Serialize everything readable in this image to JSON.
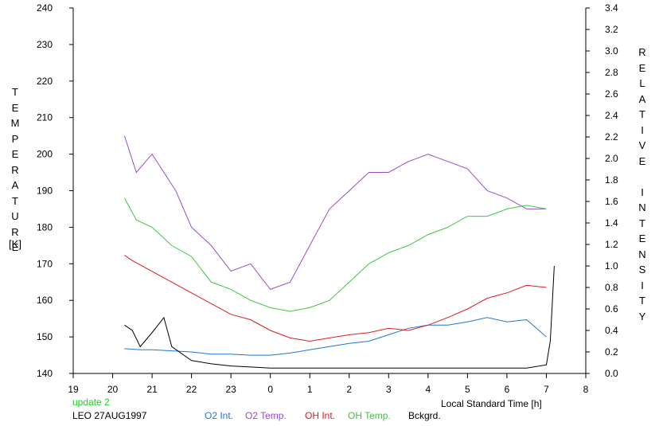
{
  "chart_data": {
    "type": "line",
    "xlabel": "Local Standard Time [h]",
    "xticks": [
      "19",
      "20",
      "21",
      "22",
      "23",
      "0",
      "1",
      "2",
      "3",
      "4",
      "5",
      "6",
      "7",
      "8"
    ],
    "xlim": [
      19,
      32
    ],
    "ylabel_left": "TEMPERATURE",
    "ylabel_left_unit": "[K]",
    "ylim_left": [
      140,
      240
    ],
    "yticks_left": [
      140,
      150,
      160,
      170,
      180,
      190,
      200,
      210,
      220,
      230,
      240
    ],
    "ylabel_right": "RELATIVE INTENSITY",
    "ylim_right": [
      0.0,
      3.4
    ],
    "yticks_right": [
      "0.0",
      "0.2",
      "0.4",
      "0.6",
      "0.8",
      "1.0",
      "1.2",
      "1.4",
      "1.6",
      "1.8",
      "2.0",
      "2.2",
      "2.4",
      "2.6",
      "2.8",
      "3.0",
      "3.2",
      "3.4"
    ],
    "grid": false,
    "series": [
      {
        "name": "O2 Int.",
        "color": "#1e78d2",
        "axis": "right",
        "x": [
          20.3,
          20.7,
          21.0,
          21.5,
          22.0,
          22.5,
          23.0,
          23.5,
          24.0,
          24.5,
          25.0,
          25.5,
          26.0,
          26.5,
          27.0,
          27.5,
          28.0,
          28.5,
          29.0,
          29.5,
          30.0,
          30.5,
          31.0
        ],
        "y": [
          0.23,
          0.22,
          0.22,
          0.21,
          0.2,
          0.18,
          0.18,
          0.17,
          0.17,
          0.19,
          0.22,
          0.25,
          0.28,
          0.3,
          0.36,
          0.42,
          0.45,
          0.45,
          0.48,
          0.52,
          0.48,
          0.5,
          0.34
        ]
      },
      {
        "name": "O2 Temp.",
        "color": "#9a4ccc",
        "axis": "left",
        "x": [
          20.3,
          20.6,
          21.0,
          21.3,
          21.6,
          22.0,
          22.5,
          23.0,
          23.5,
          24.0,
          24.5,
          25.0,
          25.5,
          26.0,
          26.5,
          27.0,
          27.5,
          28.0,
          28.5,
          29.0,
          29.5,
          30.0,
          30.5,
          31.0
        ],
        "y": [
          205,
          195,
          200,
          195,
          190,
          180,
          175,
          168,
          170,
          163,
          165,
          175,
          185,
          190,
          195,
          195,
          198,
          200,
          198,
          196,
          190,
          188,
          185,
          185
        ]
      },
      {
        "name": "OH Int.",
        "color": "#dc1e1e",
        "axis": "right",
        "x": [
          20.3,
          20.5,
          21.0,
          21.5,
          22.0,
          22.5,
          23.0,
          23.5,
          24.0,
          24.5,
          25.0,
          25.5,
          26.0,
          26.5,
          27.0,
          27.5,
          28.0,
          28.5,
          29.0,
          29.5,
          30.0,
          30.5,
          31.0
        ],
        "y": [
          1.1,
          1.05,
          0.95,
          0.85,
          0.75,
          0.65,
          0.55,
          0.5,
          0.4,
          0.33,
          0.3,
          0.33,
          0.36,
          0.38,
          0.42,
          0.4,
          0.45,
          0.52,
          0.6,
          0.7,
          0.75,
          0.82,
          0.8
        ]
      },
      {
        "name": "OH Temp.",
        "color": "#3cc83c",
        "axis": "left",
        "x": [
          20.3,
          20.6,
          21.0,
          21.5,
          22.0,
          22.5,
          23.0,
          23.5,
          24.0,
          24.5,
          25.0,
          25.5,
          26.0,
          26.5,
          27.0,
          27.5,
          28.0,
          28.5,
          29.0,
          29.5,
          30.0,
          30.5,
          31.0
        ],
        "y": [
          188,
          182,
          180,
          175,
          172,
          165,
          163,
          160,
          158,
          157,
          158,
          160,
          165,
          170,
          173,
          175,
          178,
          180,
          183,
          183,
          185,
          186,
          185
        ]
      },
      {
        "name": "Bckgrd.",
        "color": "#000000",
        "axis": "right",
        "x": [
          20.3,
          20.5,
          20.7,
          21.0,
          21.3,
          21.5,
          22.0,
          22.5,
          23.0,
          23.5,
          24.0,
          24.5,
          25.0,
          25.5,
          26.0,
          26.5,
          27.0,
          27.5,
          28.0,
          28.5,
          29.0,
          29.5,
          30.0,
          30.5,
          31.0,
          31.1,
          31.2
        ],
        "y": [
          0.45,
          0.4,
          0.25,
          0.38,
          0.52,
          0.25,
          0.12,
          0.09,
          0.07,
          0.06,
          0.05,
          0.05,
          0.05,
          0.05,
          0.05,
          0.05,
          0.05,
          0.05,
          0.05,
          0.05,
          0.05,
          0.05,
          0.05,
          0.05,
          0.08,
          0.3,
          1.0
        ]
      }
    ]
  },
  "footer": {
    "update": "update 2",
    "station": "LEO 27AUG1997",
    "legend": [
      "O2 Int.",
      "O2 Temp.",
      "OH Int.",
      "OH Temp.",
      "Bckgrd."
    ]
  },
  "colors": {
    "o2_int": "#1e78d2",
    "o2_temp": "#9a4ccc",
    "oh_int": "#dc1e1e",
    "oh_temp": "#3cc83c",
    "bckgrd": "#000000",
    "update": "#22cc22"
  }
}
